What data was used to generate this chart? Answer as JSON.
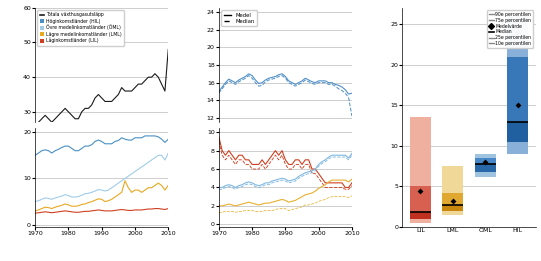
{
  "panel1": {
    "years": [
      1970,
      1971,
      1972,
      1973,
      1974,
      1975,
      1976,
      1977,
      1978,
      1979,
      1980,
      1981,
      1982,
      1983,
      1984,
      1985,
      1986,
      1987,
      1988,
      1989,
      1990,
      1991,
      1992,
      1993,
      1994,
      1995,
      1996,
      1997,
      1998,
      1999,
      2000,
      2001,
      2002,
      2003,
      2004,
      2005,
      2006,
      2007,
      2008,
      2009,
      2010
    ],
    "total": [
      26,
      27,
      28,
      29,
      28,
      27,
      28,
      29,
      30,
      31,
      30,
      29,
      28,
      28,
      30,
      31,
      31,
      32,
      34,
      35,
      34,
      33,
      33,
      33,
      34,
      35,
      37,
      36,
      36,
      36,
      37,
      38,
      38,
      39,
      40,
      40,
      41,
      40,
      38,
      36,
      48
    ],
    "HIL": [
      15,
      15.5,
      16,
      16.2,
      16,
      15.5,
      16,
      16.3,
      16.7,
      17,
      17,
      16.5,
      16,
      16,
      16.5,
      17,
      17,
      17.3,
      18,
      18.3,
      18,
      17.5,
      17.5,
      17.5,
      18,
      18.2,
      18.8,
      18.5,
      18.3,
      18.3,
      18.8,
      18.8,
      18.8,
      19.2,
      19.2,
      19.2,
      19.2,
      19,
      18.5,
      17.8,
      18.5
    ],
    "OML": [
      5,
      5.2,
      5.5,
      5.8,
      5.7,
      5.5,
      5.8,
      6,
      6.2,
      6.5,
      6.3,
      6,
      6,
      6.1,
      6.4,
      6.7,
      6.8,
      7,
      7.3,
      7.6,
      7.5,
      7.3,
      7.5,
      8,
      8.5,
      9,
      9.5,
      10,
      10.5,
      11,
      11.5,
      12,
      12.5,
      13,
      13.5,
      14,
      14.5,
      15,
      15,
      14,
      15.5
    ],
    "LML": [
      3,
      3.2,
      3.5,
      3.8,
      3.7,
      3.5,
      3.8,
      4,
      4.2,
      4.5,
      4.3,
      4,
      4,
      4.1,
      4.4,
      4.5,
      4.8,
      5,
      5.3,
      5.6,
      5.5,
      5,
      5.2,
      5.5,
      6,
      6.5,
      7,
      9.5,
      8,
      7,
      7.5,
      7.5,
      7,
      7.5,
      8,
      8,
      8.5,
      9,
      8.5,
      7.5,
      8.5
    ],
    "LIL": [
      2.5,
      2.6,
      2.7,
      2.8,
      2.7,
      2.6,
      2.7,
      2.8,
      2.9,
      3,
      2.9,
      2.8,
      2.7,
      2.7,
      2.8,
      2.9,
      2.9,
      3,
      3.1,
      3.2,
      3.1,
      3,
      3,
      3,
      3.1,
      3.2,
      3.3,
      3.2,
      3.1,
      3.1,
      3.2,
      3.2,
      3.2,
      3.3,
      3.4,
      3.4,
      3.5,
      3.5,
      3.4,
      3.3,
      3.5
    ],
    "c_total": "#1a1a1a",
    "c_HIL": "#4a90c4",
    "c_OML": "#a0cce8",
    "c_LML": "#e8a820",
    "c_LIL": "#d04020"
  },
  "panel2": {
    "years": [
      1970,
      1971,
      1972,
      1973,
      1974,
      1975,
      1976,
      1977,
      1978,
      1979,
      1980,
      1981,
      1982,
      1983,
      1984,
      1985,
      1986,
      1987,
      1988,
      1989,
      1990,
      1991,
      1992,
      1993,
      1994,
      1995,
      1996,
      1997,
      1998,
      1999,
      2000,
      2001,
      2002,
      2003,
      2004,
      2005,
      2006,
      2007,
      2008,
      2009,
      2010
    ],
    "HIL_mean": [
      15,
      15.5,
      16,
      16.4,
      16.2,
      16,
      16.3,
      16.5,
      16.7,
      17,
      16.8,
      16.3,
      15.9,
      16,
      16.3,
      16.5,
      16.6,
      16.7,
      16.9,
      17,
      16.7,
      16.2,
      16,
      15.8,
      16,
      16.2,
      16.5,
      16.3,
      16.1,
      16,
      16.2,
      16.2,
      16.2,
      16,
      16,
      15.8,
      15.7,
      15.5,
      15.2,
      14.7,
      14.8
    ],
    "HIL_median": [
      14.8,
      15.3,
      15.8,
      16.2,
      16,
      15.8,
      16.1,
      16.3,
      16.5,
      16.8,
      16.5,
      16,
      15.6,
      15.7,
      16.1,
      16.3,
      16.4,
      16.5,
      16.7,
      16.8,
      16.5,
      16,
      15.8,
      15.6,
      15.8,
      16,
      16.3,
      16.1,
      15.9,
      15.8,
      16,
      16,
      16,
      15.8,
      15.8,
      15.6,
      15.3,
      15.1,
      14.8,
      14.3,
      12.2
    ],
    "LIL_mean": [
      9.5,
      8,
      7.5,
      8,
      7.5,
      7,
      7.5,
      7.5,
      7,
      7,
      6.5,
      6.5,
      6.5,
      7,
      6.5,
      7,
      7.5,
      8,
      7.5,
      8,
      7,
      6.5,
      6.5,
      7,
      7,
      6.5,
      7,
      7,
      6,
      6,
      5.5,
      5,
      4.5,
      4.5,
      4.5,
      4.5,
      4.5,
      4.5,
      4,
      4,
      4.5
    ],
    "LIL_median": [
      9,
      7.5,
      7,
      7.5,
      7,
      6.5,
      7,
      7,
      6.5,
      6.5,
      6,
      6,
      6,
      6.5,
      6,
      6.5,
      7,
      7.5,
      7,
      7.5,
      6.5,
      6,
      6,
      6.5,
      6.5,
      6,
      6.5,
      6.5,
      5.5,
      5.5,
      5,
      4.5,
      4,
      4,
      4,
      4,
      4,
      4,
      3.8,
      3.8,
      4.2
    ],
    "OML_mean": [
      4,
      4,
      4.2,
      4.3,
      4.2,
      4,
      4.2,
      4.3,
      4.5,
      4.6,
      4.5,
      4.3,
      4.2,
      4.3,
      4.5,
      4.5,
      4.7,
      4.8,
      4.9,
      5,
      4.9,
      4.7,
      4.8,
      4.9,
      5.2,
      5.4,
      5.6,
      5.7,
      5.8,
      6,
      6.5,
      6.8,
      7,
      7.3,
      7.5,
      7.5,
      7.5,
      7.5,
      7.5,
      7.2,
      7.7
    ],
    "OML_median": [
      3.8,
      3.8,
      4,
      4.1,
      4,
      3.8,
      4,
      4.1,
      4.3,
      4.4,
      4.3,
      4.1,
      4,
      4.1,
      4.3,
      4.3,
      4.5,
      4.6,
      4.7,
      4.8,
      4.7,
      4.5,
      4.6,
      4.7,
      5,
      5.2,
      5.4,
      5.5,
      5.6,
      5.8,
      6.3,
      6.6,
      6.8,
      7.1,
      7.3,
      7.3,
      7.3,
      7.3,
      7.3,
      7,
      7.5
    ],
    "LML_mean": [
      2,
      2,
      2.1,
      2.2,
      2.1,
      2,
      2.1,
      2.2,
      2.3,
      2.4,
      2.3,
      2.2,
      2.1,
      2.2,
      2.3,
      2.3,
      2.4,
      2.5,
      2.6,
      2.7,
      2.6,
      2.4,
      2.5,
      2.6,
      2.8,
      3,
      3.2,
      3.3,
      3.4,
      3.6,
      3.9,
      4.1,
      4.3,
      4.6,
      4.8,
      4.8,
      4.8,
      4.8,
      4.8,
      4.6,
      4.9
    ],
    "LML_median": [
      1.3,
      1.3,
      1.4,
      1.4,
      1.4,
      1.3,
      1.4,
      1.4,
      1.5,
      1.5,
      1.5,
      1.4,
      1.4,
      1.4,
      1.5,
      1.5,
      1.5,
      1.6,
      1.7,
      1.7,
      1.7,
      1.5,
      1.6,
      1.7,
      1.8,
      1.9,
      2.1,
      2.1,
      2.2,
      2.3,
      2.5,
      2.6,
      2.7,
      2.9,
      3,
      3,
      3,
      3,
      3,
      2.9,
      3.1
    ],
    "c_HIL": "#5090c8",
    "c_LIL": "#d04020",
    "c_OML": "#80b8e0",
    "c_LML": "#e8b030"
  },
  "panel3": {
    "categories": [
      "LIL",
      "LML",
      "ÖML",
      "HIL"
    ],
    "colors_dark": [
      "#c03020",
      "#c88810",
      "#2868a8",
      "#2060a0"
    ],
    "colors_mid": [
      "#d86050",
      "#e0a830",
      "#4888c8",
      "#3878b8"
    ],
    "colors_light": [
      "#f0b0a0",
      "#f0d898",
      "#a0c4e0",
      "#88b0d8"
    ],
    "p10": [
      0.5,
      1.5,
      6.2,
      9.0
    ],
    "p25": [
      1.0,
      2.0,
      6.8,
      10.5
    ],
    "median": [
      1.8,
      2.7,
      7.8,
      13.0
    ],
    "mean": [
      4.5,
      3.2,
      8.0,
      15.0
    ],
    "p75": [
      5.0,
      4.2,
      8.5,
      21.0
    ],
    "p90": [
      13.5,
      7.5,
      9.0,
      26.0
    ],
    "ylim": [
      0,
      27
    ],
    "yticks": [
      0,
      5,
      10,
      15,
      20,
      25
    ]
  }
}
